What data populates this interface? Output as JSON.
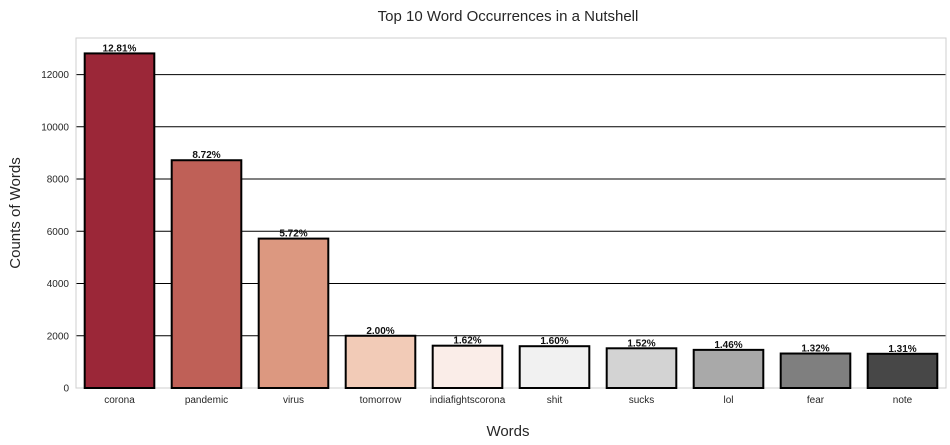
{
  "chart_data": {
    "type": "bar",
    "title": "Top 10 Word Occurrences in a Nutshell",
    "xlabel": "Words",
    "ylabel": "Counts of Words",
    "categories": [
      "corona",
      "pandemic",
      "virus",
      "tomorrow",
      "indiafightscorona",
      "shit",
      "sucks",
      "lol",
      "fear",
      "note"
    ],
    "values": [
      12810,
      8720,
      5720,
      2000,
      1620,
      1600,
      1520,
      1460,
      1320,
      1310
    ],
    "data_labels": [
      "12.81%",
      "8.72%",
      "5.72%",
      "2.00%",
      "1.62%",
      "1.60%",
      "1.52%",
      "1.46%",
      "1.32%",
      "1.31%"
    ],
    "colors": [
      "#9b2738",
      "#bf6057",
      "#dc9880",
      "#f2cbb7",
      "#faede8",
      "#f1f1f1",
      "#d3d3d3",
      "#a9a9a9",
      "#7f7f7f",
      "#474747"
    ],
    "ylim": [
      0,
      13400
    ],
    "yticks": [
      0,
      2000,
      4000,
      6000,
      8000,
      10000,
      12000
    ],
    "grid": "horizontal",
    "legend": "none"
  }
}
